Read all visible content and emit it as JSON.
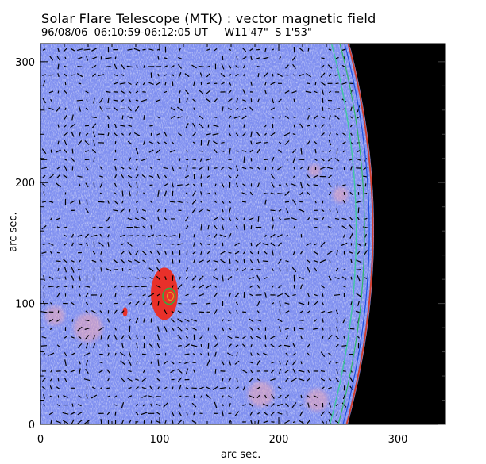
{
  "header": {
    "title": "Solar Flare Telescope (MTK) : vector magnetic field",
    "subtitle": "96/08/06  06:10:59-06:12:05 UT     W11'47\"  S 1'53\""
  },
  "axes": {
    "xlabel": "arc sec.",
    "ylabel": "arc sec.",
    "xlim": [
      0,
      340
    ],
    "ylim": [
      0,
      315
    ],
    "xticks": [
      0,
      100,
      200,
      300
    ],
    "yticks": [
      0,
      100,
      200,
      300
    ]
  },
  "colors": {
    "background": "#7f8ff0",
    "limb_mask": "#000000",
    "positive_field": "#e8302a",
    "contour_outer": "#40c8a0",
    "contour_inner": "#2050e0",
    "vectors": "#000000"
  },
  "features": {
    "sunspot": {
      "x": 104,
      "y": 108,
      "label": ""
    },
    "small_spot": {
      "x": 71,
      "y": 93
    },
    "limb_x_at_center": 280
  }
}
